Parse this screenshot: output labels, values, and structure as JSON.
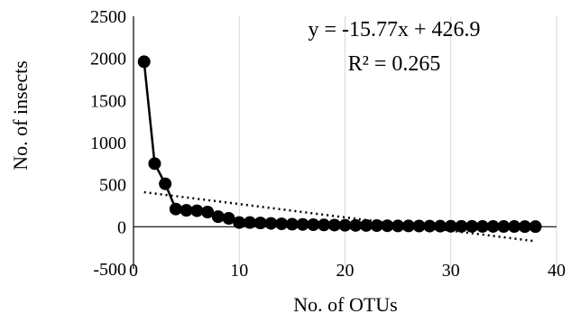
{
  "chart_data": {
    "type": "scatter",
    "title": "",
    "xlabel": "No. of OTUs",
    "ylabel": "No. of insects",
    "xlim": [
      0,
      40
    ],
    "ylim": [
      -500,
      2500
    ],
    "x_ticks": [
      0,
      10,
      20,
      30,
      40
    ],
    "y_ticks": [
      2500,
      2000,
      1500,
      1000,
      500,
      0,
      -500
    ],
    "grid": "vertical",
    "series": [
      {
        "x": [
          1,
          2,
          3,
          4,
          5,
          6,
          7,
          8,
          9,
          10,
          11,
          12,
          13,
          14,
          15,
          16,
          17,
          18,
          19,
          20,
          21,
          22,
          23,
          24,
          25,
          26,
          27,
          28,
          29,
          30,
          31,
          32,
          33,
          34,
          35,
          36,
          37,
          38
        ],
        "values": [
          1960,
          750,
          510,
          210,
          195,
          190,
          175,
          120,
          100,
          50,
          50,
          45,
          40,
          35,
          30,
          28,
          25,
          22,
          20,
          18,
          16,
          15,
          14,
          12,
          10,
          10,
          9,
          8,
          7,
          6,
          5,
          5,
          4,
          4,
          3,
          3,
          2,
          2
        ],
        "line": "solid",
        "marker": "circle",
        "color": "#000000"
      }
    ],
    "trendline": {
      "type": "linear",
      "slope": -15.77,
      "intercept": 426.9,
      "x_range": [
        1,
        38
      ],
      "style": "dotted",
      "equation": "y = -15.77x + 426.9",
      "r2": "R² = 0.265"
    }
  }
}
